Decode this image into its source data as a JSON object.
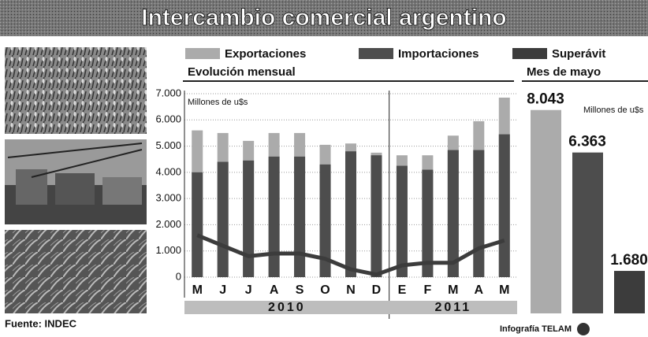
{
  "title": "Intercambio comercial argentino",
  "source": "Fuente: INDEC",
  "credit": "Infografía TELAM",
  "chart_data": [
    {
      "type": "bar-overlay-line",
      "subtitle": "Evolución mensual",
      "unit": "Millones de u$s",
      "categories": [
        "M",
        "J",
        "J",
        "A",
        "S",
        "O",
        "N",
        "D",
        "E",
        "F",
        "M",
        "A",
        "M"
      ],
      "years": [
        "2010",
        "2011"
      ],
      "series": [
        {
          "name": "Exportaciones",
          "color": "#ababab",
          "values": [
            5600,
            5500,
            5200,
            5500,
            5500,
            5050,
            5100,
            4750,
            4650,
            4650,
            5400,
            5950,
            6850
          ]
        },
        {
          "name": "Importaciones",
          "color": "#4d4d4d",
          "values": [
            4000,
            4400,
            4450,
            4600,
            4600,
            4300,
            4800,
            4650,
            4250,
            4100,
            4850,
            4850,
            5450
          ]
        },
        {
          "name": "Superávit",
          "color": "#3c3c3c",
          "values": [
            1600,
            1200,
            800,
            900,
            900,
            700,
            300,
            100,
            450,
            550,
            550,
            1100,
            1400
          ]
        }
      ],
      "ylim": [
        0,
        7000
      ],
      "yticks": [
        0,
        {
          "value": 1000,
          "label": "1.000"
        },
        {
          "value": 2000,
          "label": "2.000"
        },
        {
          "value": 3000,
          "label": "3.000"
        },
        {
          "value": 4000,
          "label": "4.000"
        },
        {
          "value": 5000,
          "label": "5.000"
        },
        {
          "value": 6000,
          "label": "6.000"
        },
        {
          "value": 7000,
          "label": "7.000"
        }
      ],
      "grid": true
    },
    {
      "type": "bar",
      "subtitle": "Mes de mayo",
      "unit": "Millones de u$s",
      "values": [
        8043,
        6363,
        1680
      ],
      "value_labels": [
        "8.043",
        "6.363",
        "1.680"
      ],
      "colors": [
        "#ababab",
        "#4d4d4d",
        "#3c3c3c"
      ],
      "ylim": [
        0,
        9000
      ]
    }
  ]
}
